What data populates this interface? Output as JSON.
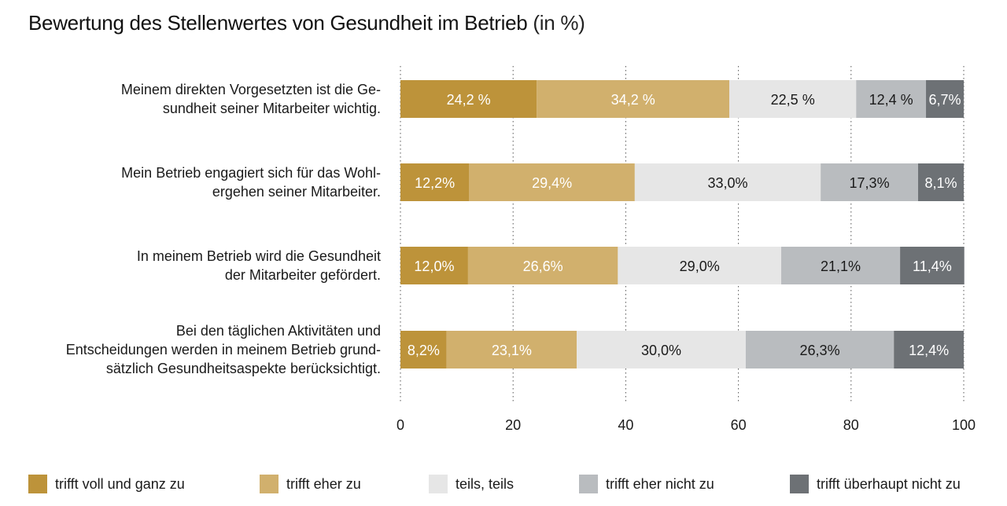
{
  "title": {
    "main": "Bewertung des Stellenwertes von Gesundheit im Betrieb",
    "unit": "(in %)"
  },
  "chart_data": {
    "type": "bar",
    "orientation": "horizontal",
    "stacked": true,
    "xlim": [
      0,
      100
    ],
    "xticks": [
      0,
      20,
      40,
      60,
      80,
      100
    ],
    "grid": "vertical dotted lines",
    "legend_position": "bottom",
    "categories": [
      [
        "Meinem direkten Vorgesetzten ist die Ge-",
        "sundheit seiner  Mitarbeiter wichtig."
      ],
      [
        "Mein  Betrieb engagiert sich für das Wohl-",
        "ergehen seiner Mitarbeiter."
      ],
      [
        "In meinem Betrieb wird die Gesundheit",
        "der Mitarbeiter gefördert."
      ],
      [
        "Bei den täglichen Aktivitäten und",
        "Entscheidungen werden in meinem Betrieb grund-",
        "sätzlich Gesundheitsaspekte berücksichtigt."
      ]
    ],
    "series": [
      {
        "name": "trifft voll und ganz zu",
        "color": "#bd933a",
        "text_color": "#ffffff",
        "values": [
          24.2,
          12.2,
          12.0,
          8.2
        ],
        "labels": [
          "24,2 %",
          "12,2%",
          "12,0%",
          "8,2%"
        ]
      },
      {
        "name": "trifft eher zu",
        "color": "#d1b06d",
        "text_color": "#ffffff",
        "values": [
          34.2,
          29.4,
          26.6,
          23.1
        ],
        "labels": [
          "34,2 %",
          "29,4%",
          "26,6%",
          "23,1%"
        ]
      },
      {
        "name": "teils, teils",
        "color": "#e6e6e6",
        "text_color": "#1a1a1a",
        "values": [
          22.5,
          33.0,
          29.0,
          30.0
        ],
        "labels": [
          "22,5 %",
          "33,0%",
          "29,0%",
          "30,0%"
        ]
      },
      {
        "name": "trifft eher nicht zu",
        "color": "#b9bcbf",
        "text_color": "#1a1a1a",
        "values": [
          12.4,
          17.3,
          21.1,
          26.3
        ],
        "labels": [
          "12,4 %",
          "17,3%",
          "21,1%",
          "26,3%"
        ]
      },
      {
        "name": "trifft überhaupt nicht zu",
        "color": "#6d7175",
        "text_color": "#ffffff",
        "values": [
          6.7,
          8.1,
          11.4,
          12.4
        ],
        "labels": [
          "6,7%",
          "8,1%",
          "11,4%",
          "12,4%"
        ]
      }
    ]
  }
}
